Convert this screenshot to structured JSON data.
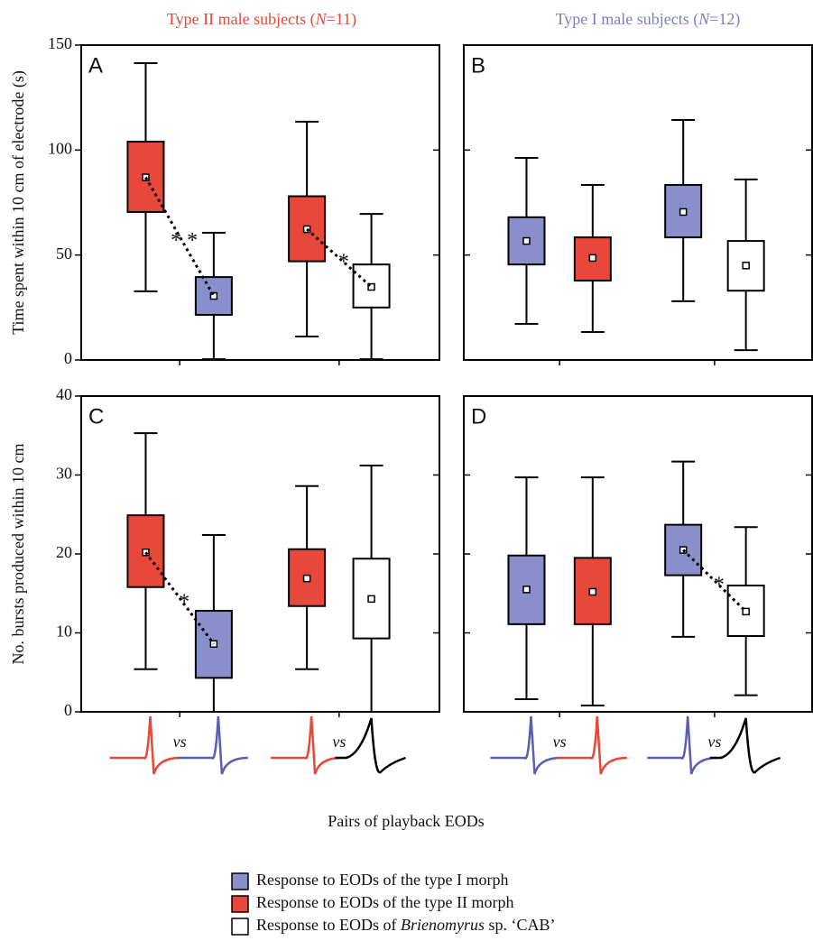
{
  "column_titles": [
    {
      "color": "#e8483a",
      "parts": [
        {
          "text": "Type II male subjects ("
        },
        {
          "text": "N",
          "italic": true
        },
        {
          "text": "=11)"
        }
      ]
    },
    {
      "color": "#7b80c4",
      "parts": [
        {
          "text": "Type I male subjects ("
        },
        {
          "text": "N",
          "italic": true
        },
        {
          "text": "=12)"
        }
      ]
    }
  ],
  "x_label": "Pairs of playback EODs",
  "legend": [
    {
      "color": "#8a8ecb",
      "parts": [
        {
          "text": "Response to EODs of the type I morph"
        }
      ]
    },
    {
      "color": "#e8483a",
      "parts": [
        {
          "text": "Response to EODs of the type II morph"
        }
      ]
    },
    {
      "color": "#ffffff",
      "parts": [
        {
          "text": "Response to EODs of "
        },
        {
          "text": "Brienomyrus",
          "italic": true
        },
        {
          "text": " sp. ‘CAB’"
        }
      ]
    }
  ],
  "chart_data": [
    {
      "type": "box",
      "panel_label": "A",
      "ylabel": "Time spent within 10 cm of electrode (s)",
      "ylim": [
        0,
        150
      ],
      "yticks": [
        0,
        50,
        100,
        150
      ],
      "ytick_labels": true,
      "boxes": [
        {
          "color": "#e8483a",
          "whisker_low": 32.7,
          "q1": 70.5,
          "median": 87,
          "q3": 104,
          "whisker_high": 141.4
        },
        {
          "color": "#8a8ecb",
          "whisker_low": 0.4,
          "q1": 21.5,
          "median": 30.5,
          "q3": 39.5,
          "whisker_high": 60.6
        },
        {
          "color": "#e8483a",
          "whisker_low": 11.2,
          "q1": 47,
          "median": 62.3,
          "q3": 78,
          "whisker_high": 113.5
        },
        {
          "color": "#ffffff",
          "whisker_low": 0.4,
          "q1": 25,
          "median": 34.8,
          "q3": 45.5,
          "whisker_high": 69.6
        }
      ],
      "pair_annotations": [
        "* *",
        "*"
      ]
    },
    {
      "type": "box",
      "panel_label": "B",
      "ylim": [
        0,
        150
      ],
      "yticks": [
        0,
        50,
        100,
        150
      ],
      "ytick_labels": false,
      "boxes": [
        {
          "color": "#8a8ecb",
          "whisker_low": 17.2,
          "q1": 45.5,
          "median": 56.7,
          "q3": 68,
          "whisker_high": 96.3
        },
        {
          "color": "#e8483a",
          "whisker_low": 13.3,
          "q1": 37.8,
          "median": 48.6,
          "q3": 58.4,
          "whisker_high": 83.4
        },
        {
          "color": "#8a8ecb",
          "whisker_low": 28,
          "q1": 58.4,
          "median": 70.5,
          "q3": 83.4,
          "whisker_high": 114.3
        },
        {
          "color": "#ffffff",
          "whisker_low": 4.7,
          "q1": 33,
          "median": 45,
          "q3": 56.7,
          "whisker_high": 86
        }
      ],
      "pair_annotations": [
        null,
        null
      ]
    },
    {
      "type": "box",
      "panel_label": "C",
      "ylabel": "No. bursts produced within 10 cm",
      "ylim": [
        0,
        40
      ],
      "yticks": [
        0,
        10,
        20,
        30,
        40
      ],
      "ytick_labels": true,
      "boxes": [
        {
          "color": "#e8483a",
          "whisker_low": 5.4,
          "q1": 15.8,
          "median": 20.2,
          "q3": 24.9,
          "whisker_high": 35.3
        },
        {
          "color": "#8a8ecb",
          "whisker_low": 0,
          "q1": 4.3,
          "median": 8.6,
          "q3": 12.8,
          "whisker_high": 22.4
        },
        {
          "color": "#e8483a",
          "whisker_low": 5.4,
          "q1": 13.4,
          "median": 16.9,
          "q3": 20.6,
          "whisker_high": 28.6
        },
        {
          "color": "#ffffff",
          "whisker_low": 0,
          "q1": 9.3,
          "median": 14.3,
          "q3": 19.4,
          "whisker_high": 31.2
        }
      ],
      "pair_annotations": [
        "*",
        null
      ],
      "pair_labels": [
        "vs",
        "vs"
      ]
    },
    {
      "type": "box",
      "panel_label": "D",
      "ylim": [
        0,
        40
      ],
      "yticks": [
        0,
        10,
        20,
        30,
        40
      ],
      "ytick_labels": false,
      "boxes": [
        {
          "color": "#8a8ecb",
          "whisker_low": 1.6,
          "q1": 11.1,
          "median": 15.5,
          "q3": 19.8,
          "whisker_high": 29.7
        },
        {
          "color": "#e8483a",
          "whisker_low": 0.8,
          "q1": 11.1,
          "median": 15.2,
          "q3": 19.5,
          "whisker_high": 29.7
        },
        {
          "color": "#8a8ecb",
          "whisker_low": 9.5,
          "q1": 17.3,
          "median": 20.5,
          "q3": 23.7,
          "whisker_high": 31.7
        },
        {
          "color": "#ffffff",
          "whisker_low": 2.1,
          "q1": 9.6,
          "median": 12.7,
          "q3": 16,
          "whisker_high": 23.4
        }
      ],
      "pair_annotations": [
        null,
        "*"
      ],
      "pair_labels": [
        "vs",
        "vs"
      ]
    }
  ]
}
